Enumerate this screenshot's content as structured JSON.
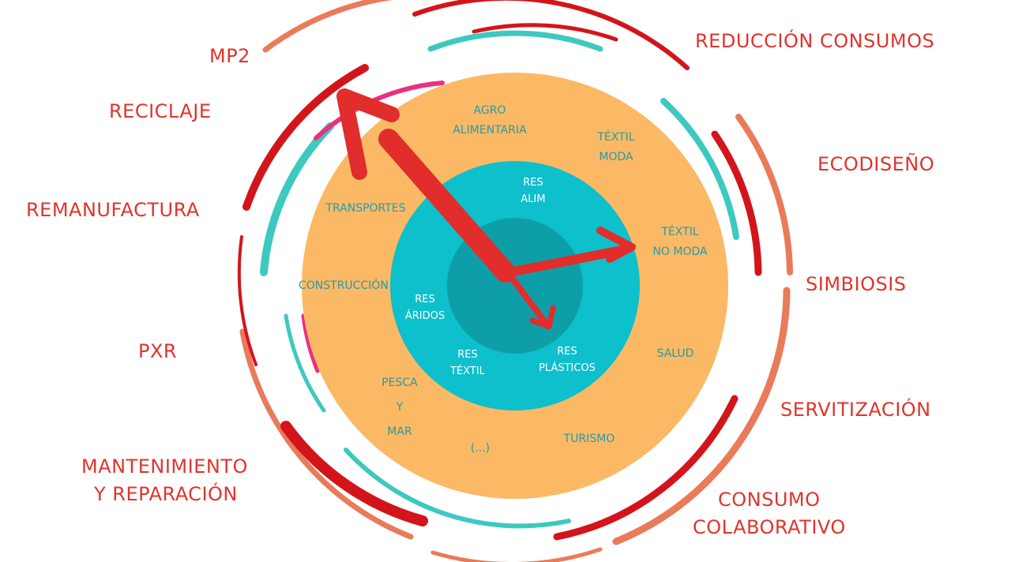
{
  "colors": {
    "label_red": "#e0342c",
    "arrow_red": "#e12d2b",
    "sector_orange": "#fbb965",
    "resource_teal": "#0ebfcc",
    "core_teal": "#0e9ea8",
    "sector_text": "#2a9aa3",
    "resource_text": "#ffffff",
    "ring_dark_red": "#d3141b",
    "ring_salmon": "#e97b5a",
    "ring_turquoise": "#3dc9c0",
    "ring_magenta": "#e8327e"
  },
  "strategies": {
    "mp2": "MP2",
    "reduccion_consumos": "REDUCCIÓN CONSUMOS",
    "reciclaje": "RECICLAJE",
    "ecodiseno": "ECODISEÑO",
    "remanufactura": "REMANUFACTURA",
    "simbiosis": "SIMBIOSIS",
    "pxr": "PXR",
    "servitizacion": "SERVITIZACIÓN",
    "mantenimiento": [
      "MANTENIMIENTO",
      "Y REPARACIÓN"
    ],
    "consumo_colaborativo": [
      "CONSUMO",
      "COLABORATIVO"
    ]
  },
  "sectors": {
    "agroalimentaria": [
      "AGRO",
      "ALIMENTARIA"
    ],
    "textil_moda": [
      "TÉXTIL",
      "MODA"
    ],
    "transportes": "TRANSPORTES",
    "textil_no_moda": [
      "TÉXTIL",
      "NO MODA"
    ],
    "construccion": "CONSTRUCCIÓN",
    "salud": "SALUD",
    "pesca_mar": [
      "PESCA",
      "Y",
      "MAR"
    ],
    "etc": "(...)",
    "turismo": "TURISMO"
  },
  "resources": {
    "res_alim": [
      "RES",
      "ALIM"
    ],
    "res_aridos": [
      "RES",
      "ÁRIDOS"
    ],
    "res_textil": [
      "RES",
      "TÉXTIL"
    ],
    "res_plasticos": [
      "RES",
      "PLÁSTICOS"
    ]
  }
}
